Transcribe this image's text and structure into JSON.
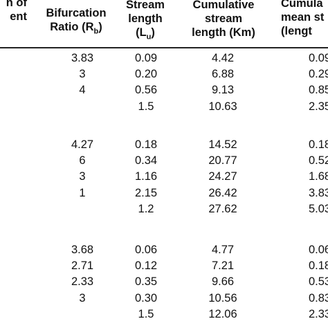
{
  "headers": {
    "col0": {
      "line1": "n of",
      "line2": "ent"
    },
    "col1": {
      "line1": "Bifurcation",
      "line2_text": "Ratio (R",
      "line2_sub": "b",
      "line2_end": ")"
    },
    "col2": {
      "line1": "Stream",
      "line2": "length",
      "line3_text": "(L",
      "line3_sub": "u",
      "line3_end": ")"
    },
    "col3": {
      "line1": "Cumulative",
      "line2": "stream",
      "line3": "length (Km)"
    },
    "col4": {
      "line1": "Cumula",
      "line2": "mean st",
      "line3": "(lengt"
    }
  },
  "groups": [
    {
      "rows": [
        {
          "rb": "3.83",
          "lu": "0.09",
          "cum": "4.42",
          "mean": "0.09"
        },
        {
          "rb": "3",
          "lu": "0.20",
          "cum": "6.88",
          "mean": "0.29"
        },
        {
          "rb": "4",
          "lu": "0.56",
          "cum": "9.13",
          "mean": "0.85"
        },
        {
          "rb": "",
          "lu": "1.5",
          "cum": "10.63",
          "mean": "2.35"
        }
      ]
    },
    {
      "rows": [
        {
          "rb": "4.27",
          "lu": "0.18",
          "cum": "14.52",
          "mean": "0.18"
        },
        {
          "rb": "6",
          "lu": "0.34",
          "cum": "20.77",
          "mean": "0.52"
        },
        {
          "rb": "3",
          "lu": "1.16",
          "cum": "24.27",
          "mean": "1.68"
        },
        {
          "rb": "1",
          "lu": "2.15",
          "cum": "26.42",
          "mean": "3.83"
        },
        {
          "rb": "",
          "lu": "1.2",
          "cum": "27.62",
          "mean": "5.03"
        }
      ]
    },
    {
      "rows": [
        {
          "rb": "3.68",
          "lu": "0.06",
          "cum": "4.77",
          "mean": "0.06"
        },
        {
          "rb": "2.71",
          "lu": "0.12",
          "cum": "7.21",
          "mean": "0.18"
        },
        {
          "rb": "2.33",
          "lu": "0.35",
          "cum": "9.66",
          "mean": "0.53"
        },
        {
          "rb": "3",
          "lu": "0.30",
          "cum": "10.56",
          "mean": "0.83"
        },
        {
          "rb": "",
          "lu": "1.5",
          "cum": "12.06",
          "mean": "2.33"
        }
      ]
    }
  ]
}
